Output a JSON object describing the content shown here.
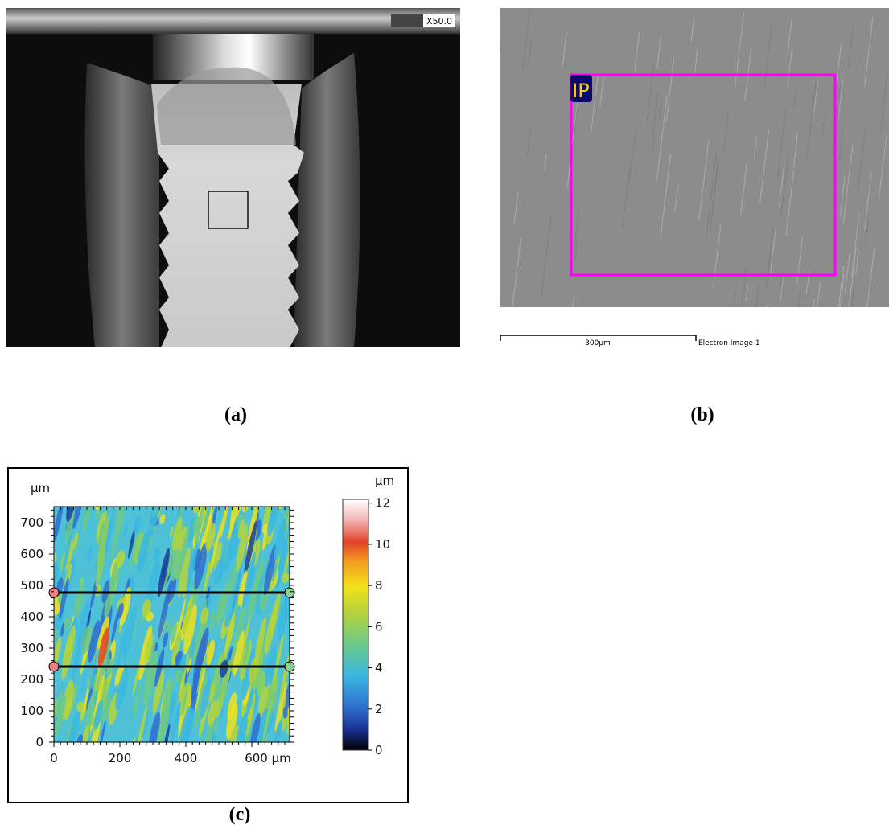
{
  "panel_a": {
    "magnification": "X50.0",
    "label": "(a)"
  },
  "panel_b": {
    "region_label": "IP",
    "scale_bar": "300µm",
    "image_name": "Electron Image 1",
    "label": "(b)"
  },
  "panel_c": {
    "axis_unit": "µm",
    "yticks": [
      0,
      100,
      200,
      300,
      400,
      500,
      600,
      700
    ],
    "xticks": [
      0,
      200,
      400,
      "600 µm"
    ],
    "colorbar_unit": "µm",
    "colorbar_ticks": [
      0,
      2,
      4,
      6,
      8,
      10,
      12
    ],
    "label": "(c)"
  }
}
